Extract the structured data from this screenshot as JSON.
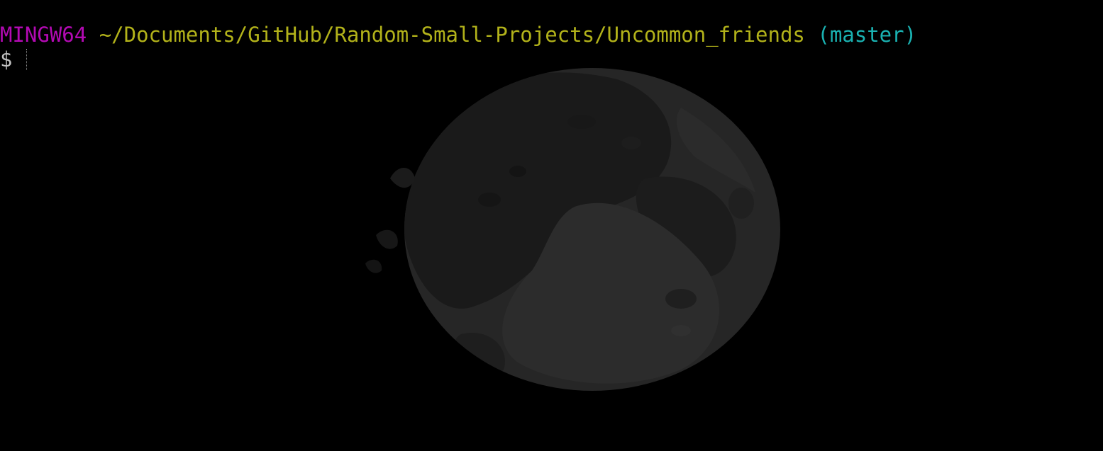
{
  "terminal": {
    "host": "MINGW64",
    "path": "~/Documents/GitHub/Random-Small-Projects/Uncommon_friends",
    "branch": "(master)",
    "prompt": "$"
  },
  "colors": {
    "host": "#b30ab3",
    "path": "#b2b21a",
    "branch": "#1ab2b2",
    "background": "#000000"
  },
  "icons": {
    "background": "moon-icon"
  }
}
